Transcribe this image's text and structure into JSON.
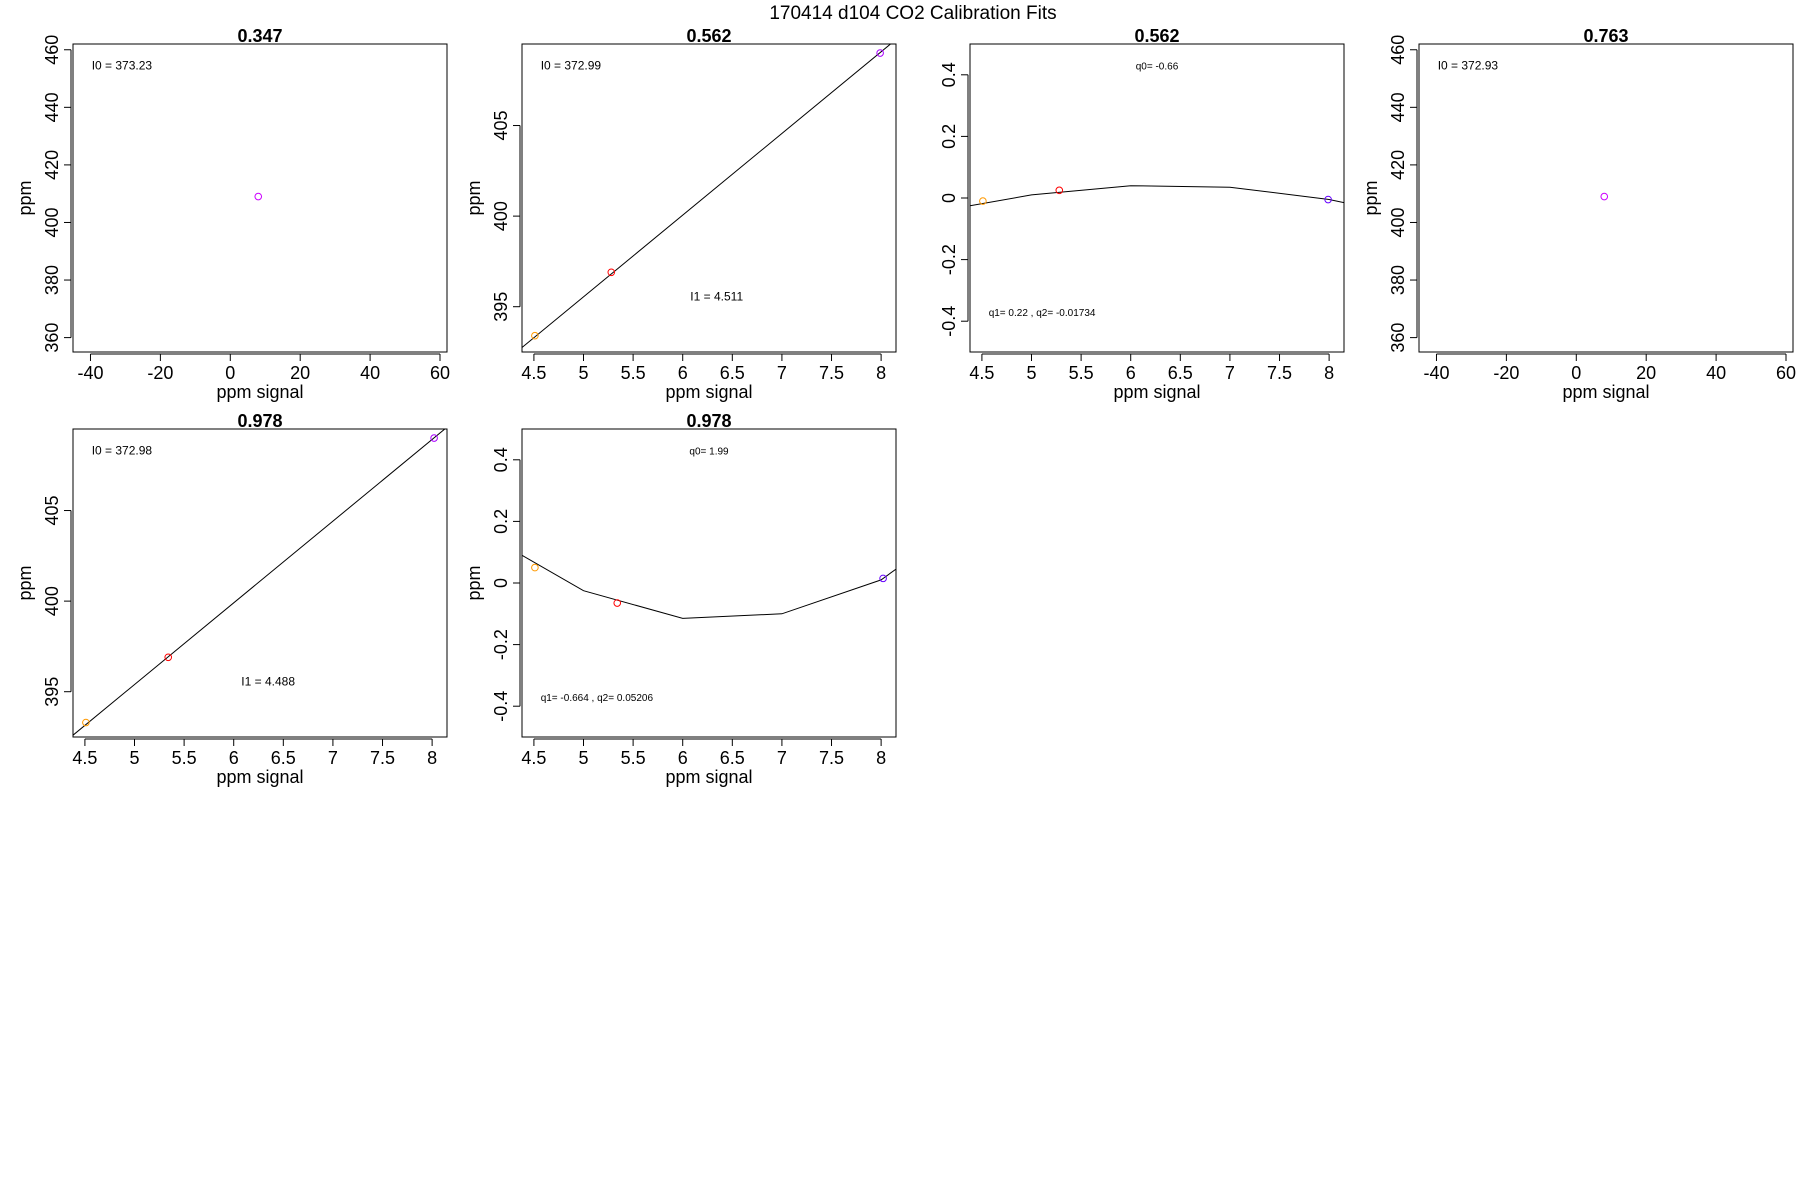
{
  "figure": {
    "title": "170414   d104   CO2 Calibration Fits"
  },
  "chart_data": [
    {
      "type": "scatter",
      "title": "0.347",
      "xlabel": "ppm signal",
      "ylabel": "ppm",
      "xlim": [
        -45,
        62
      ],
      "ylim": [
        355,
        462
      ],
      "xticks": [
        -40,
        -20,
        0,
        20,
        40,
        60
      ],
      "yticks": [
        360,
        380,
        400,
        420,
        440,
        460
      ],
      "annotations": [
        {
          "text": "I0 =  373.23",
          "ax": 0.05,
          "ay": 0.07,
          "size": "normal"
        }
      ],
      "points": [
        {
          "x": 8.0,
          "y": 409.0,
          "color": "#cc00ff"
        }
      ],
      "line": []
    },
    {
      "type": "scatter",
      "title": "0.562",
      "xlabel": "ppm signal",
      "ylabel": "ppm",
      "xlim": [
        4.38,
        8.15
      ],
      "ylim": [
        392.5,
        409.5
      ],
      "xticks": [
        4.5,
        5.0,
        5.5,
        6.0,
        6.5,
        7.0,
        7.5,
        8.0
      ],
      "yticks": [
        395,
        400,
        405
      ],
      "annotations": [
        {
          "text": "I0 =  372.99",
          "ax": 0.05,
          "ay": 0.07,
          "size": "normal"
        },
        {
          "text": "I1 =  4.511",
          "ax": 0.45,
          "ay": 0.82,
          "size": "normal"
        }
      ],
      "points": [
        {
          "x": 4.51,
          "y": 393.4,
          "color": "#ff9900"
        },
        {
          "x": 5.28,
          "y": 396.9,
          "color": "#ff0000"
        },
        {
          "x": 7.99,
          "y": 409.0,
          "color": "#aa00ff"
        }
      ],
      "line": [
        [
          4.38,
          392.75
        ],
        [
          8.15,
          409.75
        ]
      ]
    },
    {
      "type": "line",
      "title": "0.562",
      "xlabel": "ppm signal",
      "ylabel": "",
      "xlim": [
        4.38,
        8.15
      ],
      "ylim": [
        -0.5,
        0.5
      ],
      "xticks": [
        4.5,
        5.0,
        5.5,
        6.0,
        6.5,
        7.0,
        7.5,
        8.0
      ],
      "yticks": [
        -0.4,
        -0.2,
        0.0,
        0.2,
        0.4
      ],
      "annotations": [
        {
          "text": "q0= -0.66",
          "ax": 0.5,
          "ay": 0.07,
          "size": "small",
          "anchor": "middle"
        },
        {
          "text": "q1= 0.22 , q2= -0.01734",
          "ax": 0.05,
          "ay": 0.87,
          "size": "small"
        }
      ],
      "points": [
        {
          "x": 4.51,
          "y": -0.01,
          "color": "#ff9900"
        },
        {
          "x": 5.28,
          "y": 0.025,
          "color": "#ff0000"
        },
        {
          "x": 7.99,
          "y": -0.005,
          "color": "#6600ff"
        }
      ],
      "line": [
        [
          4.38,
          -0.025
        ],
        [
          5.0,
          0.01
        ],
        [
          6.0,
          0.04
        ],
        [
          7.0,
          0.035
        ],
        [
          8.0,
          -0.005
        ],
        [
          8.15,
          -0.015
        ]
      ]
    },
    {
      "type": "scatter",
      "title": "0.763",
      "xlabel": "ppm signal",
      "ylabel": "ppm",
      "xlim": [
        -45,
        62
      ],
      "ylim": [
        355,
        462
      ],
      "xticks": [
        -40,
        -20,
        0,
        20,
        40,
        60
      ],
      "yticks": [
        360,
        380,
        400,
        420,
        440,
        460
      ],
      "annotations": [
        {
          "text": "I0 =  372.93",
          "ax": 0.05,
          "ay": 0.07,
          "size": "normal"
        }
      ],
      "points": [
        {
          "x": 8.0,
          "y": 409.0,
          "color": "#cc00ff"
        }
      ],
      "line": []
    },
    {
      "type": "scatter",
      "title": "0.978",
      "xlabel": "ppm signal",
      "ylabel": "ppm",
      "xlim": [
        4.38,
        8.15
      ],
      "ylim": [
        392.5,
        409.5
      ],
      "xticks": [
        4.5,
        5.0,
        5.5,
        6.0,
        6.5,
        7.0,
        7.5,
        8.0
      ],
      "yticks": [
        395,
        400,
        405
      ],
      "annotations": [
        {
          "text": "I0 =  372.98",
          "ax": 0.05,
          "ay": 0.07,
          "size": "normal"
        },
        {
          "text": "I1 =  4.488",
          "ax": 0.45,
          "ay": 0.82,
          "size": "normal"
        }
      ],
      "points": [
        {
          "x": 4.51,
          "y": 393.3,
          "color": "#ff9900"
        },
        {
          "x": 5.34,
          "y": 396.9,
          "color": "#ff0000"
        },
        {
          "x": 8.02,
          "y": 409.0,
          "color": "#aa00ff"
        }
      ],
      "line": [
        [
          4.38,
          392.6
        ],
        [
          8.15,
          409.6
        ]
      ]
    },
    {
      "type": "line",
      "title": "0.978",
      "xlabel": "ppm signal",
      "ylabel": "ppm",
      "xlim": [
        4.38,
        8.15
      ],
      "ylim": [
        -0.5,
        0.5
      ],
      "xticks": [
        4.5,
        5.0,
        5.5,
        6.0,
        6.5,
        7.0,
        7.5,
        8.0
      ],
      "yticks": [
        -0.4,
        -0.2,
        0.0,
        0.2,
        0.4
      ],
      "annotations": [
        {
          "text": "q0= 1.99",
          "ax": 0.5,
          "ay": 0.07,
          "size": "small",
          "anchor": "middle"
        },
        {
          "text": "q1= -0.664 , q2= 0.05206",
          "ax": 0.05,
          "ay": 0.87,
          "size": "small"
        }
      ],
      "points": [
        {
          "x": 4.51,
          "y": 0.05,
          "color": "#ff9900"
        },
        {
          "x": 5.34,
          "y": -0.065,
          "color": "#ff0000"
        },
        {
          "x": 8.02,
          "y": 0.015,
          "color": "#6600ff"
        }
      ],
      "line": [
        [
          4.38,
          0.09
        ],
        [
          5.0,
          -0.025
        ],
        [
          6.0,
          -0.115
        ],
        [
          7.0,
          -0.1
        ],
        [
          8.0,
          0.01
        ],
        [
          8.15,
          0.045
        ]
      ]
    }
  ]
}
